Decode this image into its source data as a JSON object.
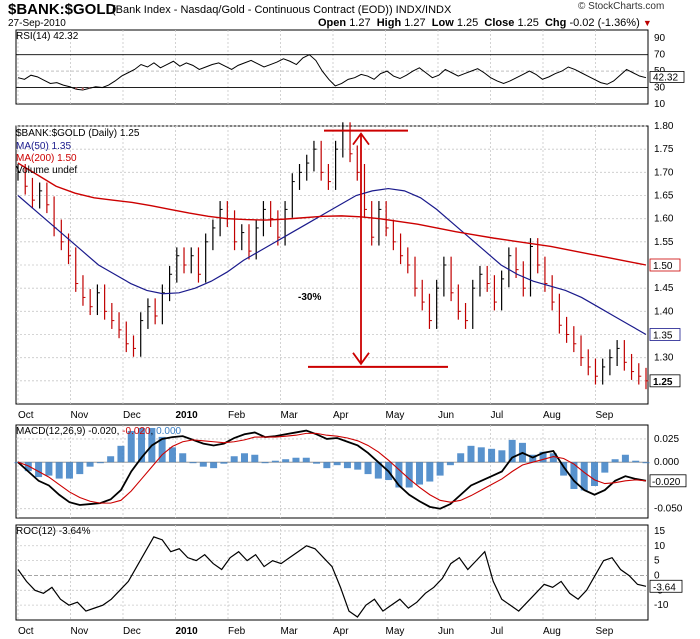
{
  "header": {
    "ticker": "$BANK:$GOLD",
    "subtitle": "(Bank Index - Nasdaq/Gold - Continuous Contract (EOD)) INDX/INDX",
    "date": "27-Sep-2010",
    "open_label": "Open",
    "open": "1.27",
    "high_label": "High",
    "high": "1.27",
    "low_label": "Low",
    "low": "1.25",
    "close_label": "Close",
    "close": "1.25",
    "chg_label": "Chg",
    "chg": "-0.02 (-1.36%)",
    "brand": "© StockCharts.com"
  },
  "colors": {
    "ma50": "#1a1a8c",
    "ma200": "#cc0000",
    "bars": "#000000",
    "macd_hist": "#3b7fc4",
    "annotation": "#cc0000"
  },
  "chart_data": [
    {
      "type": "line",
      "name": "rsi-panel",
      "legend": "RSI(14) 42.32",
      "current": 42.32,
      "current_label": "42.32",
      "ylim": [
        10,
        100
      ],
      "yticks": [
        90,
        70,
        50,
        30,
        10
      ],
      "reference_lines": [
        30,
        50,
        70
      ],
      "values": [
        42,
        40,
        45,
        43,
        39,
        35,
        36,
        33,
        31,
        28,
        27,
        29,
        31,
        30,
        33,
        38,
        44,
        48,
        52,
        58,
        55,
        60,
        54,
        58,
        62,
        56,
        60,
        57,
        52,
        55,
        58,
        60,
        56,
        52,
        57,
        60,
        63,
        59,
        55,
        58,
        61,
        65,
        62,
        58,
        66,
        70,
        63,
        50,
        40,
        32,
        35,
        40,
        42,
        46,
        44,
        40,
        47,
        50,
        44,
        41,
        45,
        50,
        54,
        48,
        42,
        45,
        52,
        48,
        44,
        47,
        50,
        53,
        48,
        42,
        38,
        35,
        38,
        42,
        46,
        50,
        46,
        40,
        43,
        47,
        50,
        55,
        52,
        48,
        44,
        40,
        36,
        34,
        38,
        45,
        52,
        48,
        44,
        42
      ]
    },
    {
      "type": "bar",
      "name": "price-panel",
      "legend": {
        "price": "$BANK:$GOLD (Daily) 1.25",
        "ma50": "MA(50) 1.35",
        "ma200": "MA(200) 1.50",
        "volume": "Volume undef"
      },
      "ylim": [
        1.2,
        1.8
      ],
      "yticks": [
        1.8,
        1.75,
        1.7,
        1.65,
        1.6,
        1.55,
        1.5,
        1.45,
        1.4,
        1.35,
        1.3,
        1.25
      ],
      "y_tick_labels": [
        "1.80",
        "1.75",
        "1.70",
        "1.65",
        "1.60",
        "1.55",
        "1.50",
        "1.45",
        "1.40",
        "1.35",
        "1.30",
        "1.25"
      ],
      "last_label": "1.25",
      "ma50_label": "1.35",
      "ma200_label": "1.50",
      "x_tick_labels": [
        "Oct",
        "Nov",
        "Dec",
        "2010",
        "Feb",
        "Mar",
        "Apr",
        "May",
        "Jun",
        "Jul",
        "Aug",
        "Sep"
      ],
      "close": [
        1.7,
        1.67,
        1.64,
        1.66,
        1.63,
        1.58,
        1.55,
        1.52,
        1.46,
        1.43,
        1.41,
        1.44,
        1.4,
        1.38,
        1.36,
        1.33,
        1.32,
        1.38,
        1.41,
        1.39,
        1.44,
        1.48,
        1.52,
        1.5,
        1.52,
        1.48,
        1.55,
        1.58,
        1.62,
        1.6,
        1.55,
        1.57,
        1.53,
        1.58,
        1.62,
        1.6,
        1.56,
        1.62,
        1.68,
        1.7,
        1.72,
        1.75,
        1.7,
        1.68,
        1.75,
        1.79,
        1.74,
        1.7,
        1.62,
        1.56,
        1.62,
        1.58,
        1.55,
        1.52,
        1.5,
        1.45,
        1.42,
        1.38,
        1.45,
        1.5,
        1.44,
        1.4,
        1.38,
        1.45,
        1.48,
        1.46,
        1.42,
        1.47,
        1.52,
        1.49,
        1.45,
        1.54,
        1.5,
        1.46,
        1.42,
        1.37,
        1.35,
        1.33,
        1.3,
        1.28,
        1.26,
        1.28,
        1.3,
        1.32,
        1.29,
        1.27,
        1.26,
        1.25
      ],
      "ma50": [
        1.65,
        1.62,
        1.59,
        1.56,
        1.53,
        1.5,
        1.48,
        1.46,
        1.445,
        1.438,
        1.44,
        1.45,
        1.465,
        1.485,
        1.51,
        1.53,
        1.55,
        1.57,
        1.59,
        1.61,
        1.63,
        1.65,
        1.66,
        1.665,
        1.66,
        1.645,
        1.62,
        1.59,
        1.56,
        1.53,
        1.5,
        1.48,
        1.465,
        1.455,
        1.445,
        1.43,
        1.41,
        1.39,
        1.37,
        1.35
      ],
      "ma200": [
        1.72,
        1.695,
        1.67,
        1.655,
        1.645,
        1.64,
        1.635,
        1.628,
        1.62,
        1.612,
        1.605,
        1.6,
        1.598,
        1.597,
        1.599,
        1.602,
        1.605,
        1.606,
        1.604,
        1.6,
        1.594,
        1.588,
        1.58,
        1.572,
        1.565,
        1.558,
        1.552,
        1.546,
        1.54,
        1.532,
        1.524,
        1.516,
        1.508,
        1.5
      ],
      "annotation": {
        "text": "-30%",
        "top": 1.79,
        "bottom": 1.25
      }
    },
    {
      "type": "line",
      "name": "macd-panel",
      "legend": {
        "prefix": "MACD(12,26,9)",
        "macd": "-0.020",
        "signal": "-0.020",
        "hist": "0.000"
      },
      "ylim": [
        -0.06,
        0.04
      ],
      "yticks": [
        0.025,
        0.0,
        -0.05
      ],
      "y_tick_labels": [
        "0.025",
        "0.000",
        "-0.050"
      ],
      "current_label": "-0.020",
      "macd": [
        0.0,
        -0.01,
        -0.02,
        -0.025,
        -0.035,
        -0.043,
        -0.046,
        -0.045,
        -0.044,
        -0.04,
        -0.03,
        -0.01,
        0.005,
        0.018,
        0.025,
        0.027,
        0.028,
        0.024,
        0.02,
        0.018,
        0.02,
        0.026,
        0.03,
        0.032,
        0.027,
        0.028,
        0.03,
        0.032,
        0.034,
        0.03,
        0.025,
        0.026,
        0.022,
        0.018,
        0.01,
        0.0,
        -0.01,
        -0.025,
        -0.035,
        -0.042,
        -0.048,
        -0.05,
        -0.045,
        -0.035,
        -0.025,
        -0.02,
        -0.015,
        -0.01,
        0.005,
        0.01,
        0.005,
        0.01,
        0.012,
        -0.005,
        -0.02,
        -0.03,
        -0.035,
        -0.03,
        -0.02,
        -0.015,
        -0.018,
        -0.02
      ],
      "signal": [
        0.0,
        -0.004,
        -0.01,
        -0.016,
        -0.024,
        -0.032,
        -0.038,
        -0.042,
        -0.044,
        -0.044,
        -0.041,
        -0.031,
        -0.018,
        -0.005,
        0.008,
        0.017,
        0.022,
        0.024,
        0.023,
        0.022,
        0.021,
        0.022,
        0.024,
        0.027,
        0.027,
        0.027,
        0.028,
        0.029,
        0.031,
        0.031,
        0.029,
        0.028,
        0.026,
        0.023,
        0.018,
        0.011,
        0.002,
        -0.008,
        -0.018,
        -0.027,
        -0.035,
        -0.041,
        -0.043,
        -0.041,
        -0.036,
        -0.03,
        -0.024,
        -0.018,
        -0.01,
        -0.003,
        0.0,
        0.003,
        0.006,
        0.004,
        -0.002,
        -0.011,
        -0.019,
        -0.023,
        -0.022,
        -0.02,
        -0.019,
        -0.02
      ]
    },
    {
      "type": "line",
      "name": "roc-panel",
      "legend": "ROC(12) -3.64%",
      "ylim": [
        -15,
        17
      ],
      "yticks": [
        15,
        10,
        5,
        0,
        -5,
        -10
      ],
      "y_tick_labels": [
        "15",
        "10",
        "5",
        "0",
        "-5",
        "-10"
      ],
      "current_label": "-3.64",
      "values": [
        2,
        -2,
        -5,
        -6,
        -4,
        -8,
        -10,
        -9,
        -12,
        -11,
        -10,
        -8,
        -5,
        -2,
        3,
        8,
        13,
        12,
        8,
        9,
        6,
        5,
        7,
        4,
        2,
        6,
        8,
        5,
        7,
        3,
        5,
        4,
        6,
        8,
        10,
        9,
        6,
        3,
        -4,
        -12,
        -14,
        -10,
        -8,
        -12,
        -10,
        -8,
        -11,
        -9,
        -6,
        -4,
        -1,
        4,
        6,
        2,
        5,
        8,
        -2,
        -8,
        -10,
        -12,
        -9,
        -6,
        -3,
        -4,
        -2,
        -6,
        -8,
        -5,
        0,
        5,
        6,
        2,
        0,
        -3,
        -3.64
      ],
      "x_tick_labels": [
        "Oct",
        "Nov",
        "Dec",
        "2010",
        "Feb",
        "Mar",
        "Apr",
        "May",
        "Jun",
        "Jul",
        "Aug",
        "Sep"
      ]
    }
  ]
}
